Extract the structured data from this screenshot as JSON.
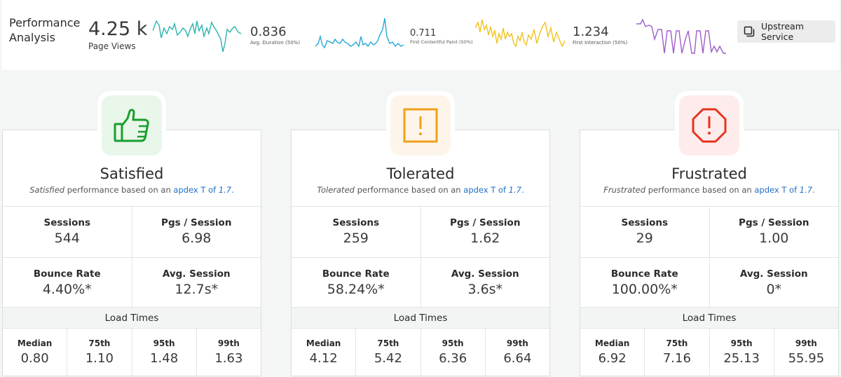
{
  "header": {
    "title_line1": "Performance",
    "title_line2": "Analysis",
    "page_views": {
      "value": "4.25 k",
      "label": "Page Views"
    },
    "avg_duration": {
      "value": "0.836",
      "label": "Avg. Duration (50%)"
    },
    "first_contentful_paint": {
      "value": "0.711",
      "label": "First Contentful Paint (50%)"
    },
    "first_interaction": {
      "value": "1.234",
      "label": "First Interaction (50%)"
    },
    "upstream_button": "Upstream Service",
    "colors": {
      "teal": "#2bb3ad",
      "blue": "#27a8d8",
      "yellow": "#f2c21b",
      "purple": "#a05dc9"
    }
  },
  "cards": [
    {
      "title": "Satisfied",
      "desc_em": "Satisfied",
      "desc_mid": " performance based on an ",
      "desc_link": "apdex T of ",
      "desc_val": "1.7",
      "desc_end": ".",
      "icon": "thumbs-up-icon",
      "color": "#1a9e2c",
      "badge_bg": "#e9f6ea",
      "sessions_label": "Sessions",
      "sessions": "544",
      "pgs_label": "Pgs / Session",
      "pgs": "6.98",
      "bounce_label": "Bounce Rate",
      "bounce": "4.40%*",
      "avg_label": "Avg. Session",
      "avg": "12.7s*",
      "load_times_label": "Load Times",
      "median_label": "Median",
      "median": "0.80",
      "p75_label": "75th",
      "p75": "1.10",
      "p95_label": "95th",
      "p95": "1.48",
      "p99_label": "99th",
      "p99": "1.63"
    },
    {
      "title": "Tolerated",
      "desc_em": "Tolerated",
      "desc_mid": " performance based on an ",
      "desc_link": "apdex T of ",
      "desc_val": "1.7",
      "desc_end": ".",
      "icon": "warning-square-icon",
      "color": "#f29f1c",
      "badge_bg": "#fdf5e9",
      "sessions_label": "Sessions",
      "sessions": "259",
      "pgs_label": "Pgs / Session",
      "pgs": "1.62",
      "bounce_label": "Bounce Rate",
      "bounce": "58.24%*",
      "avg_label": "Avg. Session",
      "avg": "3.6s*",
      "load_times_label": "Load Times",
      "median_label": "Median",
      "median": "4.12",
      "p75_label": "75th",
      "p75": "5.42",
      "p95_label": "95th",
      "p95": "6.36",
      "p99_label": "99th",
      "p99": "6.64"
    },
    {
      "title": "Frustrated",
      "desc_em": "Frustrated",
      "desc_mid": " performance based on an ",
      "desc_link": "apdex T of ",
      "desc_val": "1.7",
      "desc_end": ".",
      "icon": "stop-octagon-icon",
      "color": "#e8321e",
      "badge_bg": "#fdeceb",
      "sessions_label": "Sessions",
      "sessions": "29",
      "pgs_label": "Pgs / Session",
      "pgs": "1.00",
      "bounce_label": "Bounce Rate",
      "bounce": "100.00%*",
      "avg_label": "Avg. Session",
      "avg": "0*",
      "load_times_label": "Load Times",
      "median_label": "Median",
      "median": "6.92",
      "p75_label": "75th",
      "p75": "7.16",
      "p95_label": "95th",
      "p95": "25.13",
      "p99_label": "99th",
      "p99": "55.95"
    }
  ]
}
